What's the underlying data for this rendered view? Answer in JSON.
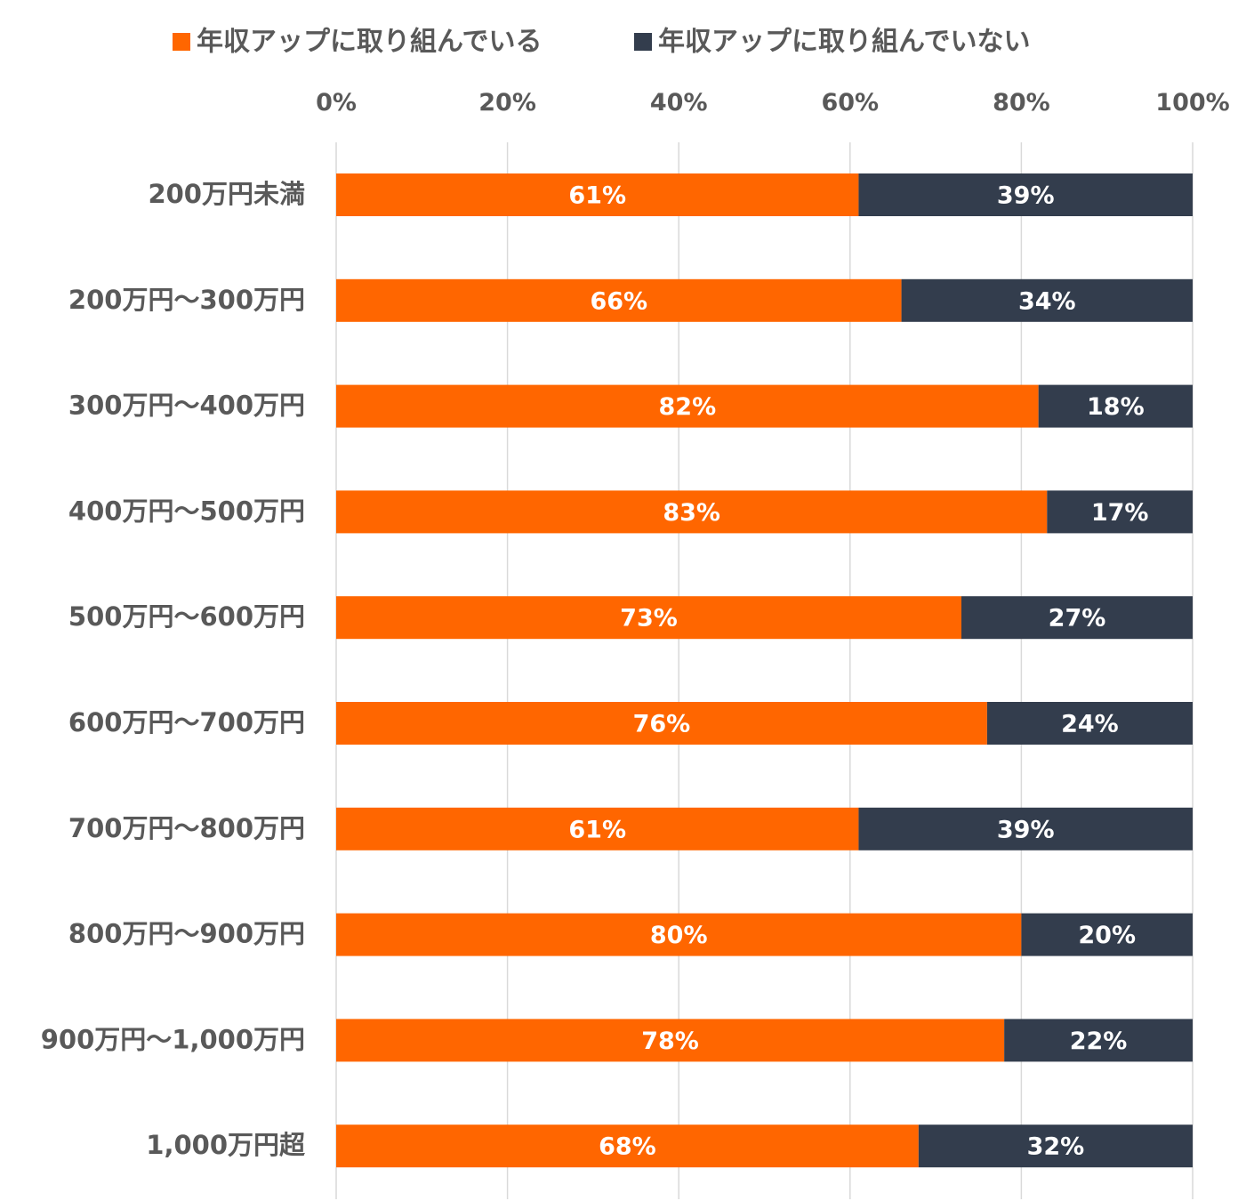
{
  "chart_data": {
    "type": "bar",
    "orientation": "horizontal",
    "stacked": "percent",
    "legend": {
      "position": "top",
      "entries": [
        {
          "name": "年収アップに取り組んでいる",
          "color": "#ff6600"
        },
        {
          "name": "年収アップに取り組んでいない",
          "color": "#333d4d"
        }
      ]
    },
    "x_axis": {
      "position": "top",
      "ticks": [
        "0%",
        "20%",
        "40%",
        "60%",
        "80%",
        "100%"
      ],
      "range": [
        0,
        100
      ],
      "gridlines": true
    },
    "categories": [
      "200万円未満",
      "200万円～300万円",
      "300万円～400万円",
      "400万円～500万円",
      "500万円～600万円",
      "600万円～700万円",
      "700万円～800万円",
      "800万円～900万円",
      "900万円～1,000万円",
      "1,000万円超"
    ],
    "series": [
      {
        "name": "年収アップに取り組んでいる",
        "color": "#ff6600",
        "values": [
          61,
          66,
          82,
          83,
          73,
          76,
          61,
          80,
          78,
          68
        ],
        "labels": [
          "61%",
          "66%",
          "82%",
          "83%",
          "73%",
          "76%",
          "61%",
          "80%",
          "78%",
          "68%"
        ]
      },
      {
        "name": "年収アップに取り組んでいない",
        "color": "#333d4d",
        "values": [
          39,
          34,
          18,
          17,
          27,
          24,
          39,
          20,
          22,
          32
        ],
        "labels": [
          "39%",
          "34%",
          "18%",
          "17%",
          "27%",
          "24%",
          "39%",
          "20%",
          "22%",
          "32%"
        ]
      }
    ]
  }
}
